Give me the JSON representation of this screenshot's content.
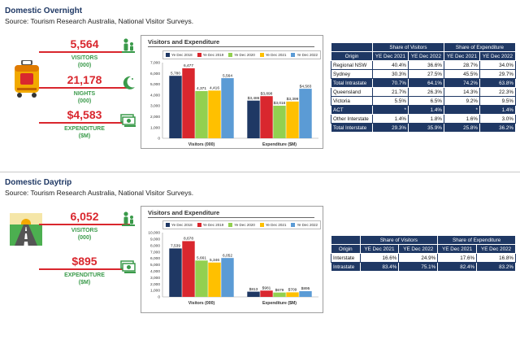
{
  "colors": {
    "accent_red": "#d9272e",
    "label_green": "#3a9a4a",
    "navy": "#1f3864",
    "series": [
      "#1f3864",
      "#d9272e",
      "#92d050",
      "#ffc000",
      "#5b9bd5"
    ]
  },
  "overnight": {
    "title": "Domestic Overnight",
    "source": "Source: Tourism Research Australia, National Visitor Surveys.",
    "kpis": [
      {
        "value": "5,564",
        "label1": "VISITORS",
        "label2": "(000)",
        "icon": "people-icon"
      },
      {
        "value": "21,178",
        "label1": "NIGHTS",
        "label2": "(000)",
        "icon": "moon-icon"
      },
      {
        "value": "$4,583",
        "label1": "EXPENDITURE",
        "label2": "($M)",
        "icon": "money-icon"
      }
    ],
    "illustration": "suitcase-icon",
    "chart_data": {
      "type": "bar",
      "title": "Visitors and Expenditure",
      "categories": [
        "Visitors (000)",
        "Expenditure ($M)"
      ],
      "series": [
        {
          "name": "Ye Dec 2018",
          "values": [
            5780,
            3486
          ]
        },
        {
          "name": "Ye Dec 2019",
          "values": [
            6477,
            3898
          ]
        },
        {
          "name": "Ye Dec 2020",
          "values": [
            4371,
            3016
          ]
        },
        {
          "name": "Ye Dec 2021",
          "values": [
            4416,
            3399
          ]
        },
        {
          "name": "Ye Dec 2022",
          "values": [
            5564,
            4583
          ]
        }
      ],
      "data_labels": [
        [
          "5,780",
          "$3,486"
        ],
        [
          "6,477",
          "$3,898"
        ],
        [
          "4,371",
          "$3,016"
        ],
        [
          "4,416",
          "$3,399"
        ],
        [
          "5,564",
          "$4,583"
        ]
      ],
      "ylim": [
        0,
        7000
      ],
      "yticks": [
        "0",
        "1,000",
        "2,000",
        "3,000",
        "4,000",
        "5,000",
        "6,000",
        "7,000"
      ],
      "grid": false,
      "legend": "top"
    },
    "table": {
      "group_headers": [
        "Share of Visitors",
        "Share of Expenditure"
      ],
      "columns": [
        "Origin",
        "YE Dec 2021",
        "YE Dec 2022",
        "YE Dec 2021",
        "YE Dec 2022"
      ],
      "rows": [
        {
          "cells": [
            "Regional NSW",
            "40.4%",
            "36.6%",
            "28.7%",
            "34.0%"
          ],
          "style": "light"
        },
        {
          "cells": [
            "Sydney",
            "30.3%",
            "27.5%",
            "45.5%",
            "29.7%"
          ],
          "style": "light"
        },
        {
          "cells": [
            "Total Intrastate",
            "70.7%",
            "64.1%",
            "74.2%",
            "63.8%"
          ],
          "style": "dark"
        },
        {
          "cells": [
            "Queensland",
            "21.7%",
            "26.3%",
            "14.3%",
            "22.3%"
          ],
          "style": "light"
        },
        {
          "cells": [
            "Victoria",
            "5.5%",
            "6.5%",
            "9.2%",
            "9.5%"
          ],
          "style": "light"
        },
        {
          "cells": [
            "ACT",
            "*",
            "1.4%",
            "*",
            "1.4%"
          ],
          "style": "dark"
        },
        {
          "cells": [
            "Other Interstate",
            "1.4%",
            "1.8%",
            "1.6%",
            "3.0%"
          ],
          "style": "light"
        },
        {
          "cells": [
            "Total Interstate",
            "29.3%",
            "35.9%",
            "25.8%",
            "36.2%"
          ],
          "style": "dark"
        }
      ]
    }
  },
  "daytrip": {
    "title": "Domestic Daytrip",
    "source": "Source: Tourism Research Australia, National Visitor Surveys.",
    "kpis": [
      {
        "value": "6,052",
        "label1": "VISITORS",
        "label2": "(000)",
        "icon": "people-icon"
      },
      {
        "value": "$895",
        "label1": "EXPENDITURE",
        "label2": "($M)",
        "icon": "money-icon"
      }
    ],
    "illustration": "road-icon",
    "chart_data": {
      "type": "bar",
      "title": "Visitors and Expenditure",
      "categories": [
        "Visitors (000)",
        "Expenditure ($M)"
      ],
      "series": [
        {
          "name": "Ye Dec 2018",
          "values": [
            7539,
            813
          ]
        },
        {
          "name": "Ye Dec 2019",
          "values": [
            8678,
            981
          ]
        },
        {
          "name": "Ye Dec 2020",
          "values": [
            5661,
            679
          ]
        },
        {
          "name": "Ye Dec 2021",
          "values": [
            5346,
            709
          ]
        },
        {
          "name": "Ye Dec 2022",
          "values": [
            6052,
            895
          ]
        }
      ],
      "data_labels": [
        [
          "7,539",
          "$813"
        ],
        [
          "8,678",
          "$981"
        ],
        [
          "5,661",
          "$679"
        ],
        [
          "5,346",
          "$709"
        ],
        [
          "6,052",
          "$895"
        ]
      ],
      "ylim": [
        0,
        10000
      ],
      "yticks": [
        "0",
        "1,000",
        "2,000",
        "3,000",
        "4,000",
        "5,000",
        "6,000",
        "7,000",
        "8,000",
        "9,000",
        "10,000"
      ],
      "grid": false,
      "legend": "top"
    },
    "table": {
      "group_headers": [
        "Share of Visitors",
        "Share of Expenditure"
      ],
      "columns": [
        "Origin",
        "YE Dec 2021",
        "YE Dec 2022",
        "YE Dec 2021",
        "YE Dec 2022"
      ],
      "rows": [
        {
          "cells": [
            "Interstate",
            "16.6%",
            "24.9%",
            "17.6%",
            "16.8%"
          ],
          "style": "light"
        },
        {
          "cells": [
            "Intrastate",
            "83.4%",
            "75.1%",
            "82.4%",
            "83.2%"
          ],
          "style": "dark"
        }
      ]
    }
  }
}
